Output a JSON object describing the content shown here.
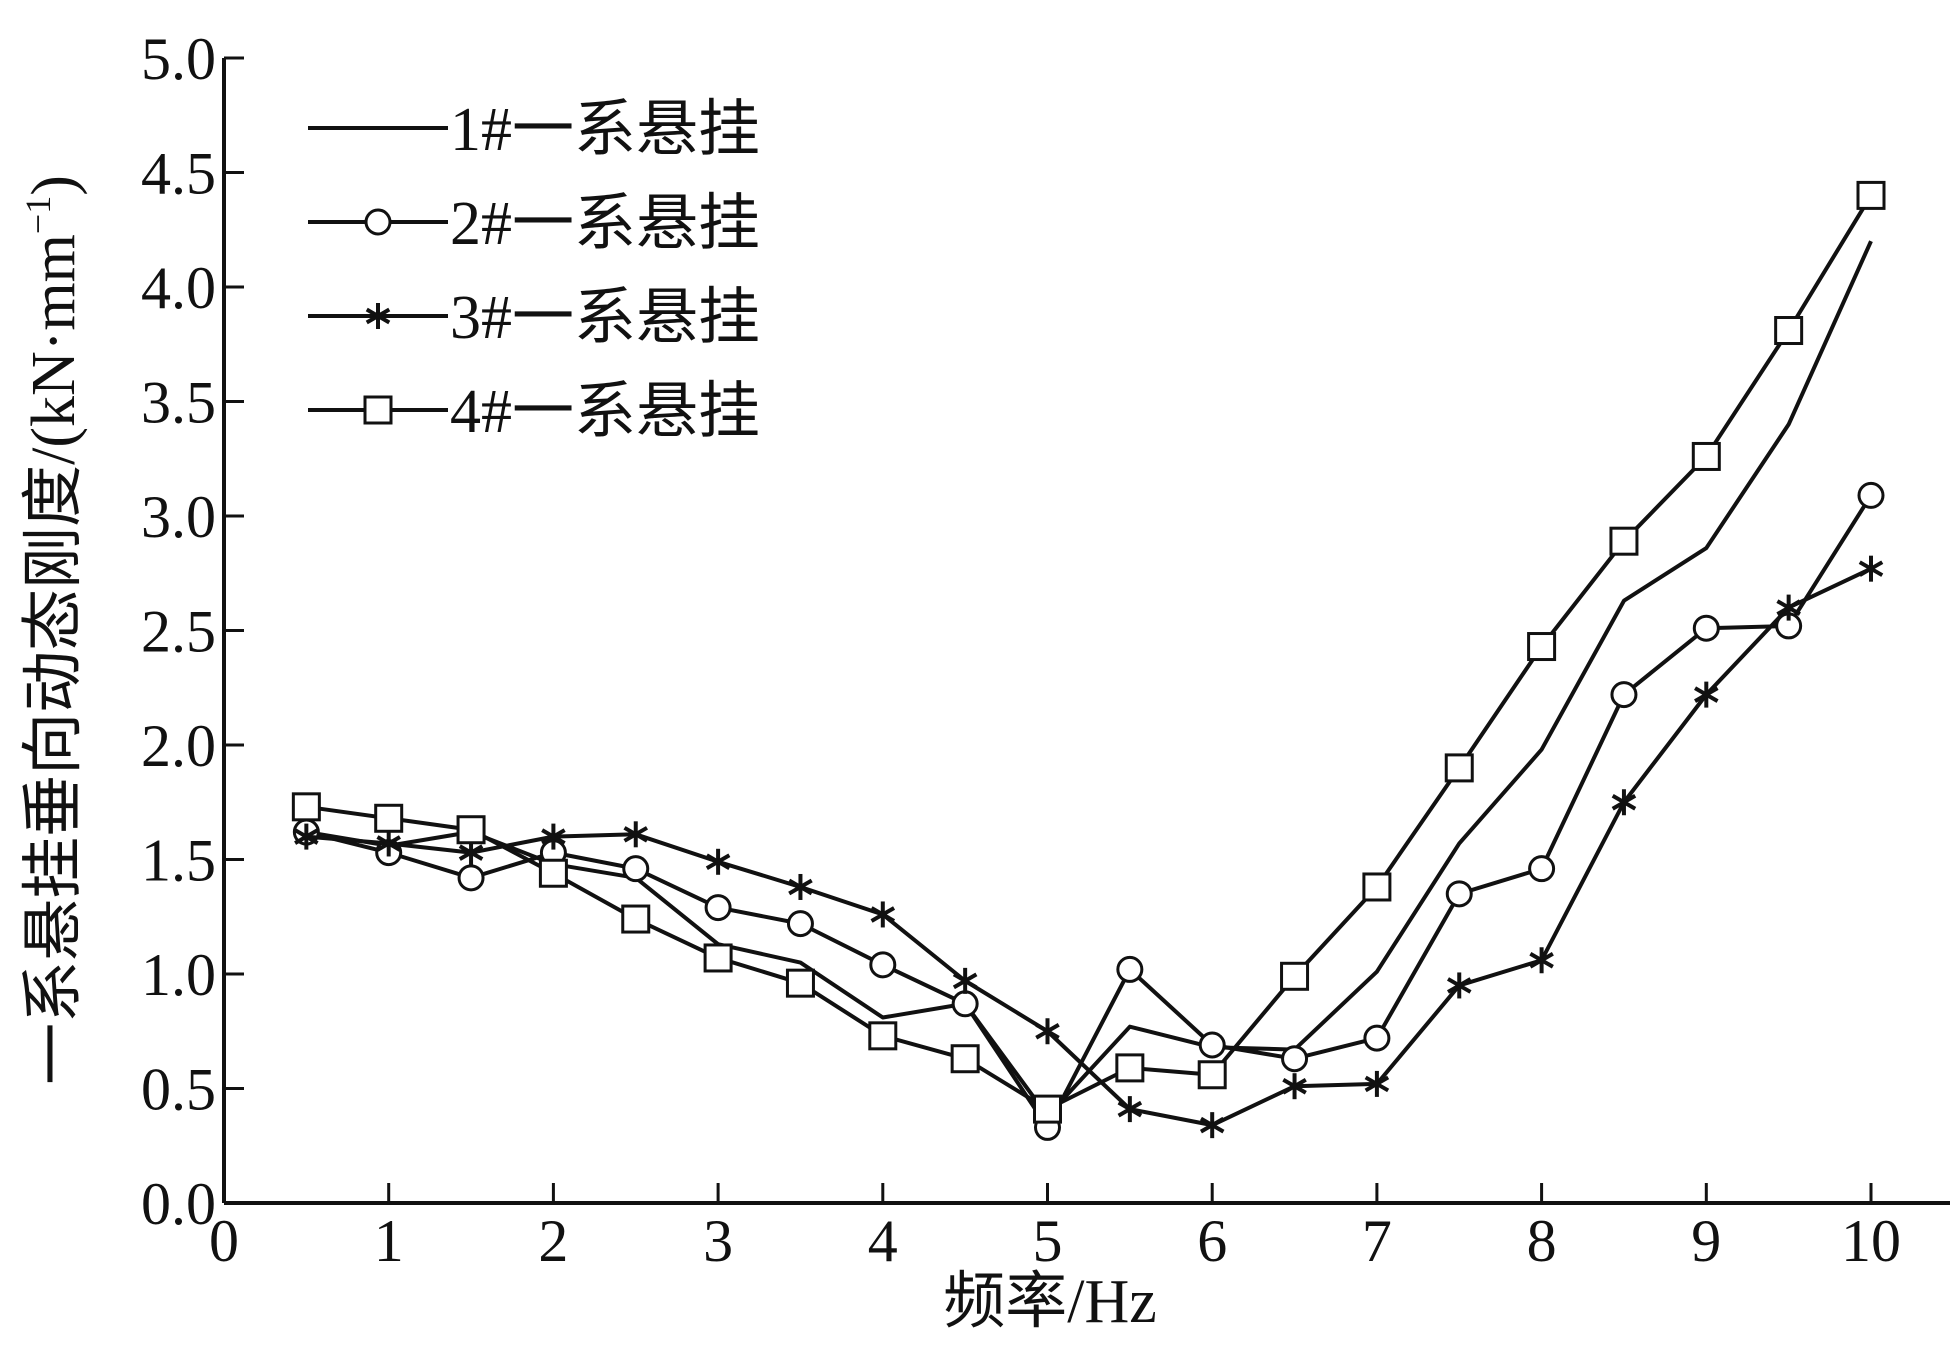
{
  "chart_data": {
    "type": "line",
    "xlabel": "频率/Hz",
    "ylabel": "一系悬挂垂向动态刚度/(kN·mm",
    "ylabel_sup": "−1",
    "ylabel_end": ")",
    "xlim": [
      0,
      10.5
    ],
    "ylim": [
      0,
      5
    ],
    "xticks": [
      "0",
      "1",
      "2",
      "3",
      "4",
      "5",
      "6",
      "7",
      "8",
      "9",
      "10"
    ],
    "yticks": [
      "0.0",
      "0.5",
      "1.0",
      "1.5",
      "2.0",
      "2.5",
      "3.0",
      "3.5",
      "4.0",
      "4.5",
      "5.0"
    ],
    "grid": false,
    "legend_position": "top-left",
    "x": [
      0.5,
      1,
      1.5,
      2,
      2.5,
      3,
      3.5,
      4,
      4.5,
      5,
      5.5,
      6,
      6.5,
      7,
      7.5,
      8,
      8.5,
      9,
      9.5,
      10
    ],
    "series": [
      {
        "name": "1#一系悬挂",
        "marker": "none",
        "values": [
          1.62,
          1.56,
          1.62,
          1.48,
          1.42,
          1.13,
          1.05,
          0.81,
          0.87,
          0.38,
          0.77,
          0.68,
          0.67,
          1.01,
          1.57,
          1.98,
          2.63,
          2.86,
          3.4,
          4.2
        ]
      },
      {
        "name": "2#一系悬挂",
        "marker": "circle",
        "values": [
          1.62,
          1.53,
          1.42,
          1.53,
          1.46,
          1.29,
          1.22,
          1.04,
          0.87,
          0.33,
          1.02,
          0.69,
          0.63,
          0.72,
          1.35,
          1.46,
          2.22,
          2.51,
          2.52,
          3.09
        ]
      },
      {
        "name": "3#一系悬挂",
        "marker": "star",
        "values": [
          1.6,
          1.57,
          1.53,
          1.6,
          1.61,
          1.49,
          1.38,
          1.26,
          0.97,
          0.75,
          0.41,
          0.34,
          0.51,
          0.52,
          0.95,
          1.06,
          1.75,
          2.22,
          2.6,
          2.77
        ]
      },
      {
        "name": "4#一系悬挂",
        "marker": "square",
        "values": [
          1.73,
          1.68,
          1.63,
          1.44,
          1.24,
          1.07,
          0.96,
          0.73,
          0.63,
          0.41,
          0.59,
          0.56,
          0.99,
          1.38,
          1.9,
          2.43,
          2.89,
          3.26,
          3.81,
          4.4
        ]
      }
    ]
  }
}
